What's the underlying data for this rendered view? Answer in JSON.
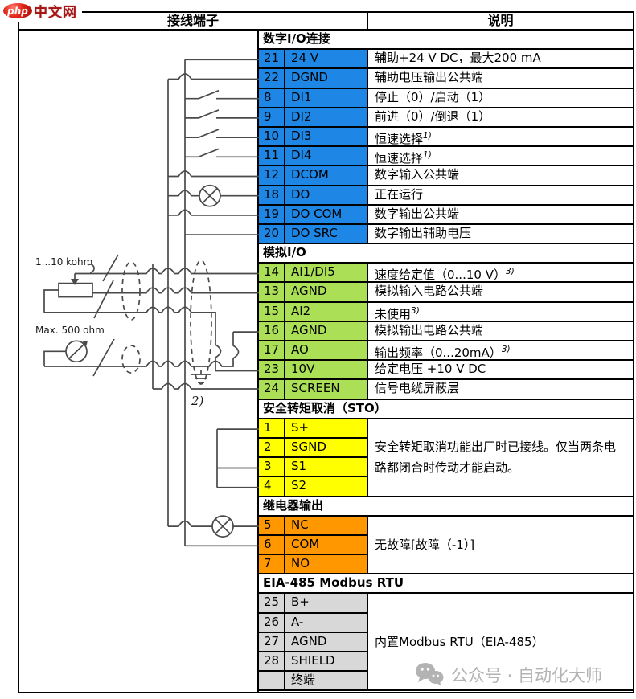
{
  "logo": {
    "php": "php",
    "cn": "中文网"
  },
  "header": {
    "left": "接线端子",
    "right": "说明"
  },
  "colors": {
    "digital": "#1E87E5",
    "analog": "#ABE056",
    "sto": "#FFFF00",
    "relay": "#FF9800",
    "modbus": "#D8D8D8",
    "wire": "#4a4a4a",
    "watermark": "#b3b3b3"
  },
  "sections": [
    {
      "id": "digital",
      "title": "数字I/O连接",
      "color": "#1E87E5",
      "rows": [
        {
          "num": "21",
          "name": "24 V",
          "desc": "辅助+24 V DC，最大200 mA"
        },
        {
          "num": "22",
          "name": "DGND",
          "desc": "辅助电压输出公共端"
        },
        {
          "num": "8",
          "name": "DI1",
          "desc": "停止（0）/启动（1）"
        },
        {
          "num": "9",
          "name": "DI2",
          "desc": "前进（0）/倒退（1）"
        },
        {
          "num": "10",
          "name": "DI3",
          "desc": "恒速选择",
          "sup": "1)"
        },
        {
          "num": "11",
          "name": "DI4",
          "desc": "恒速选择",
          "sup": "1)"
        },
        {
          "num": "12",
          "name": "DCOM",
          "desc": "数字输入公共端"
        },
        {
          "num": "18",
          "name": "DO",
          "desc": "正在运行"
        },
        {
          "num": "19",
          "name": "DO COM",
          "desc": "数字输出公共端"
        },
        {
          "num": "20",
          "name": "DO SRC",
          "desc": "数字输出辅助电压"
        }
      ]
    },
    {
      "id": "analog",
      "title": "模拟I/O",
      "color": "#ABE056",
      "rows": [
        {
          "num": "14",
          "name": "AI1/DI5",
          "desc": "速度给定值（0...10 V）",
          "sup": "3)"
        },
        {
          "num": "13",
          "name": "AGND",
          "desc": "模拟输入电路公共端"
        },
        {
          "num": "15",
          "name": "AI2",
          "desc": "未使用",
          "sup": "3)"
        },
        {
          "num": "16",
          "name": "AGND",
          "desc": "模拟输出电路公共端"
        },
        {
          "num": "17",
          "name": "AO",
          "desc": "输出频率（0...20mA）",
          "sup": "3)"
        },
        {
          "num": "23",
          "name": "10V",
          "desc": "给定电压 +10 V DC"
        },
        {
          "num": "24",
          "name": "SCREEN",
          "desc": "信号电缆屏蔽层"
        }
      ]
    },
    {
      "id": "sto",
      "title": "安全转矩取消（STO）",
      "color": "#FFFF00",
      "merged_desc": "安全转矩取消功能出厂时已接线。仅当两条电路都闭合时传动才能启动。",
      "rows": [
        {
          "num": "1",
          "name": "S+"
        },
        {
          "num": "2",
          "name": "SGND"
        },
        {
          "num": "3",
          "name": "S1"
        },
        {
          "num": "4",
          "name": "S2"
        }
      ]
    },
    {
      "id": "relay",
      "title": "继电器输出",
      "color": "#FF9800",
      "merged_desc": "无故障[故障（-1）]",
      "rows": [
        {
          "num": "5",
          "name": "NC"
        },
        {
          "num": "6",
          "name": "COM"
        },
        {
          "num": "7",
          "name": "NO"
        }
      ]
    },
    {
      "id": "modbus",
      "title": "EIA-485 Modbus RTU",
      "color": "#D8D8D8",
      "merged_desc": "内置Modbus RTU（EIA-485）",
      "rows": [
        {
          "num": "25",
          "name": "B+"
        },
        {
          "num": "26",
          "name": "A-"
        },
        {
          "num": "27",
          "name": "AGND"
        },
        {
          "num": "28",
          "name": "SHIELD"
        },
        {
          "num": "",
          "name": "终端"
        }
      ]
    }
  ],
  "diagram": {
    "pot_label": "1...10 kohm",
    "meter_label": "Max. 500 ohm",
    "footnote": "2)"
  },
  "watermark": {
    "text": "公众号 · 自动化大师"
  }
}
